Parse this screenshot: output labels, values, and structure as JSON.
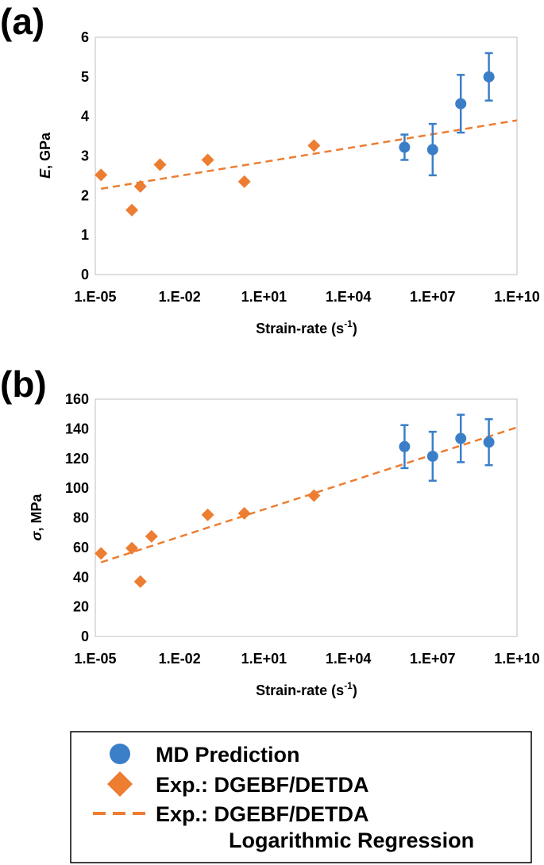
{
  "colors": {
    "md": "#3b7ec8",
    "exp": "#ed7d31",
    "axis": "#000000"
  },
  "chart_data": [
    {
      "type": "scatter",
      "panel_label": "(a)",
      "xscale": "log",
      "xlim": [
        1e-05,
        10000000000.0
      ],
      "ylim": [
        0,
        6
      ],
      "xticks": [
        1e-05,
        0.01,
        10.0,
        10000.0,
        10000000.0,
        10000000000.0
      ],
      "xtick_labels": [
        "1.E-05",
        "1.E-02",
        "1.E+01",
        "1.E+04",
        "1.E+07",
        "1.E+10"
      ],
      "yticks": [
        0,
        1,
        2,
        3,
        4,
        5,
        6
      ],
      "ytick_labels": [
        "0",
        "1",
        "2",
        "3",
        "4",
        "5",
        "6"
      ],
      "xlabel": {
        "main": "Strain-rate (s",
        "sup": "-1",
        "end": ")"
      },
      "ylabel": {
        "symbol": "E",
        "rest": ", GPa"
      },
      "series": [
        {
          "name": "MD Prediction",
          "marker": "circle",
          "x": [
            1000000.0,
            10000000.0,
            100000000.0,
            1000000000.0
          ],
          "y": [
            3.22,
            3.16,
            4.32,
            5.0
          ],
          "yerr": [
            0.32,
            0.65,
            0.73,
            0.6
          ]
        },
        {
          "name": "Exp.: DGEBF/DETDA",
          "marker": "diamond",
          "x": [
            1.6e-05,
            0.0002,
            0.0004,
            0.002,
            0.1,
            2,
            600
          ],
          "y": [
            2.52,
            1.63,
            2.23,
            2.78,
            2.9,
            2.35,
            3.26
          ]
        },
        {
          "name": "Exp.: DGEBF/DETDA Logarithmic Regression",
          "line": "dashed",
          "x": [
            1.6e-05,
            10000000000.0
          ],
          "y": [
            2.17,
            3.9
          ]
        }
      ]
    },
    {
      "type": "scatter",
      "panel_label": "(b)",
      "xscale": "log",
      "xlim": [
        1e-05,
        10000000000.0
      ],
      "ylim": [
        0,
        160
      ],
      "xticks": [
        1e-05,
        0.01,
        10.0,
        10000.0,
        10000000.0,
        10000000000.0
      ],
      "xtick_labels": [
        "1.E-05",
        "1.E-02",
        "1.E+01",
        "1.E+04",
        "1.E+07",
        "1.E+10"
      ],
      "yticks": [
        0,
        20,
        40,
        60,
        80,
        100,
        120,
        140,
        160
      ],
      "ytick_labels": [
        "0",
        "20",
        "40",
        "60",
        "80",
        "100",
        "120",
        "140",
        "160"
      ],
      "xlabel": {
        "main": "Strain-rate (s",
        "sup": "-1",
        "end": ")"
      },
      "ylabel": {
        "symbol": "σ",
        "rest": ", MPa"
      },
      "series": [
        {
          "name": "MD Prediction",
          "marker": "circle",
          "x": [
            1000000.0,
            10000000.0,
            100000000.0,
            1000000000.0
          ],
          "y": [
            128,
            121.5,
            133.5,
            131
          ],
          "yerr": [
            14.5,
            16.5,
            16,
            15.5
          ]
        },
        {
          "name": "Exp.: DGEBF/DETDA",
          "marker": "diamond",
          "x": [
            1.6e-05,
            0.0002,
            0.0004,
            0.001,
            0.1,
            2,
            600
          ],
          "y": [
            56,
            59.5,
            37,
            67.5,
            82,
            83,
            95
          ]
        },
        {
          "name": "Exp.: DGEBF/DETDA Logarithmic Regression",
          "line": "dashed",
          "x": [
            1.6e-05,
            10000000000.0
          ],
          "y": [
            50,
            141
          ]
        }
      ]
    }
  ],
  "legend": {
    "items": [
      {
        "marker": "circle",
        "label": "MD Prediction"
      },
      {
        "marker": "diamond",
        "label": "Exp.: DGEBF/DETDA"
      },
      {
        "marker": "dashed-line",
        "label": "Exp.: DGEBF/DETDA",
        "label2": "Logarithmic Regression"
      }
    ]
  }
}
